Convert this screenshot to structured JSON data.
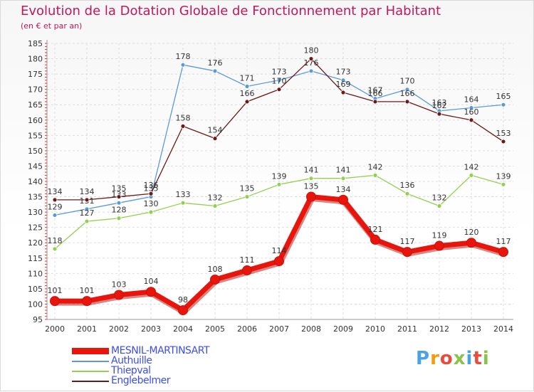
{
  "header": {
    "title": "Evolution de la Dotation Globale de Fonctionnement par Habitant",
    "subtitle": "(en € et par an)"
  },
  "logo": {
    "text": "Proxiti",
    "colors": [
      "#4aa3df",
      "#f39c12",
      "#e74c3c",
      "#8bc34a",
      "#4aa3df",
      "#e74c3c",
      "#8bc34a"
    ]
  },
  "chart_data": {
    "type": "line",
    "x": [
      "2000",
      "2001",
      "2002",
      "2003",
      "2004",
      "2005",
      "2006",
      "2007",
      "2008",
      "2009",
      "2010",
      "2011",
      "2012",
      "2013",
      "2014"
    ],
    "ylim": [
      95,
      185
    ],
    "yticks": [
      95,
      100,
      105,
      110,
      115,
      120,
      125,
      130,
      135,
      140,
      145,
      150,
      155,
      160,
      165,
      170,
      175,
      180,
      185
    ],
    "grid": true,
    "legend_position": "bottom-left",
    "series": [
      {
        "name": "MESNIL-MARTINSART",
        "color": "#e8150c",
        "values": [
          101,
          101,
          103,
          104,
          98,
          108,
          111,
          114,
          135,
          134,
          121,
          117,
          119,
          120,
          117
        ]
      },
      {
        "name": "Authuille",
        "color": "#5b9bd5",
        "values": [
          129,
          131,
          133,
          135,
          178,
          176,
          171,
          173,
          176,
          173,
          167,
          170,
          163,
          164,
          165
        ]
      },
      {
        "name": "Thiepval",
        "color": "#92d050",
        "values": [
          118,
          127,
          128,
          130,
          133,
          132,
          135,
          139,
          141,
          141,
          142,
          136,
          132,
          142,
          139
        ]
      },
      {
        "name": "Englebelmer",
        "color": "#6b1a1a",
        "values": [
          134,
          134,
          135,
          136,
          158,
          154,
          166,
          170,
          180,
          169,
          166,
          166,
          162,
          160,
          153
        ]
      }
    ]
  }
}
